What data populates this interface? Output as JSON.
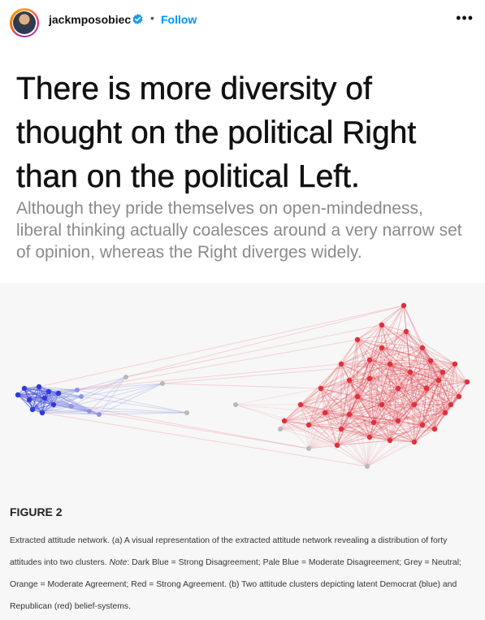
{
  "header": {
    "username": "jackmposobiec",
    "separator": "•",
    "follow_label": "Follow",
    "more_label": "•••"
  },
  "post": {
    "headline": "There is more diversity of thought on the political Right than on the political Left.",
    "subtitle": "Although they pride themselves on open-mindedness, liberal thinking actually coalesces around a very narrow set of opinion, whereas the Right diverges widely.",
    "figure_title": "FIGURE 2",
    "caption_part1": "Extracted attitude network. (a) A visual representation of the extracted attitude network revealing a distribution of forty attitudes into two clusters. ",
    "caption_note": "Note",
    "caption_part2": ": Dark Blue = Strong Disagreement; Pale Blue = Moderate Disagreement; Grey = Neutral; Orange = Moderate Agreement; Red = Strong Agreement. (b) Two attitude clusters depicting latent Democrat (blue) and Republican (red) belief-systems."
  },
  "colors": {
    "follow": "#0095f6",
    "verified": "#1d9bf0",
    "dark_blue": "#2e3bd6",
    "pale_blue": "#8a93e6",
    "grey": "#b8b8b8",
    "red": "#e0303a",
    "pale_red": "#eb8a8f"
  },
  "icons": {
    "verified": "verified-badge-icon",
    "more": "more-options-icon"
  }
}
